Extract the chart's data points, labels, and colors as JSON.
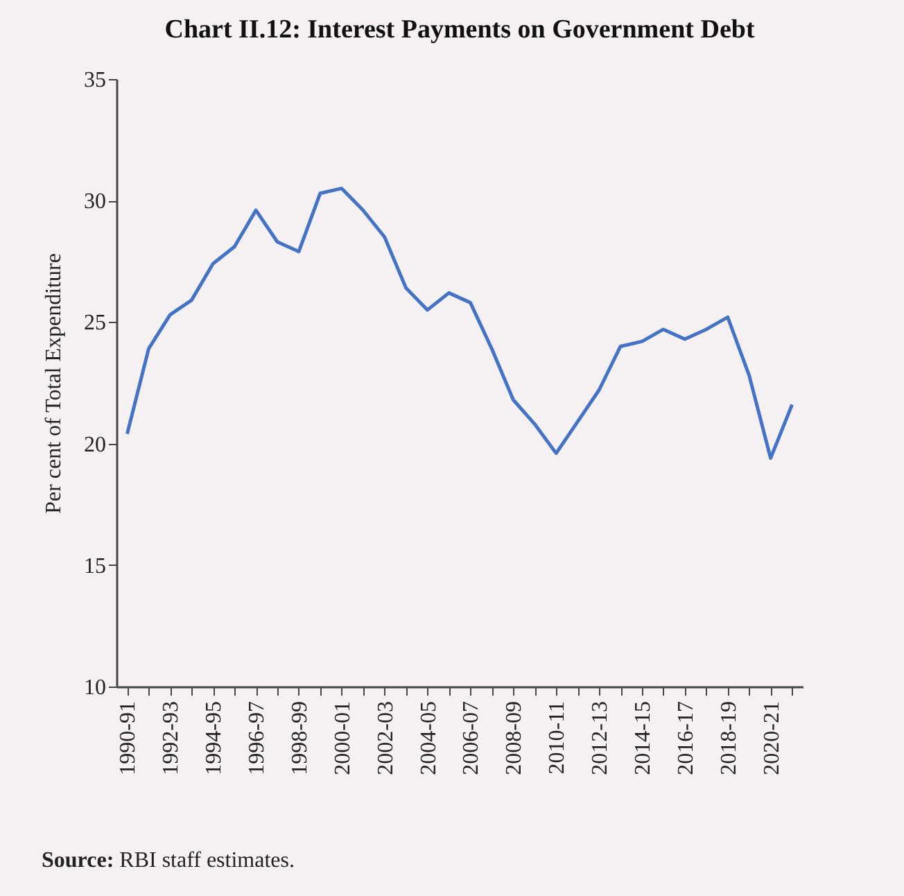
{
  "chart_data": {
    "type": "line",
    "title": "Chart II.12: Interest Payments on Government Debt",
    "ylabel": "Per cent of Total Expenditure",
    "categories": [
      "1990-91",
      null,
      "1992-93",
      null,
      "1994-95",
      null,
      "1996-97",
      null,
      "1998-99",
      null,
      "2000-01",
      null,
      "2002-03",
      null,
      "2004-05",
      null,
      "2006-07",
      null,
      "2008-09",
      null,
      "2010-11",
      null,
      "2012-13",
      null,
      "2014-15",
      null,
      "2016-17",
      null,
      "2018-19",
      null,
      "2020-21",
      null
    ],
    "series": [
      {
        "color": "#4472c4",
        "values": [
          20.4,
          23.9,
          25.3,
          25.9,
          27.4,
          28.1,
          29.6,
          28.3,
          27.9,
          30.3,
          30.5,
          29.6,
          28.5,
          26.4,
          25.5,
          26.2,
          25.8,
          23.9,
          21.8,
          20.8,
          19.6,
          20.9,
          22.2,
          24.0,
          24.2,
          24.7,
          24.3,
          24.7,
          25.2,
          22.8,
          19.4,
          21.6
        ]
      }
    ],
    "ylim": [
      10,
      35
    ],
    "yticks": [
      10,
      15,
      20,
      25,
      30,
      35
    ],
    "grid": false,
    "marker": "none",
    "line_style": "solid",
    "annotations": [
      "Source: RBI staff estimates."
    ]
  }
}
